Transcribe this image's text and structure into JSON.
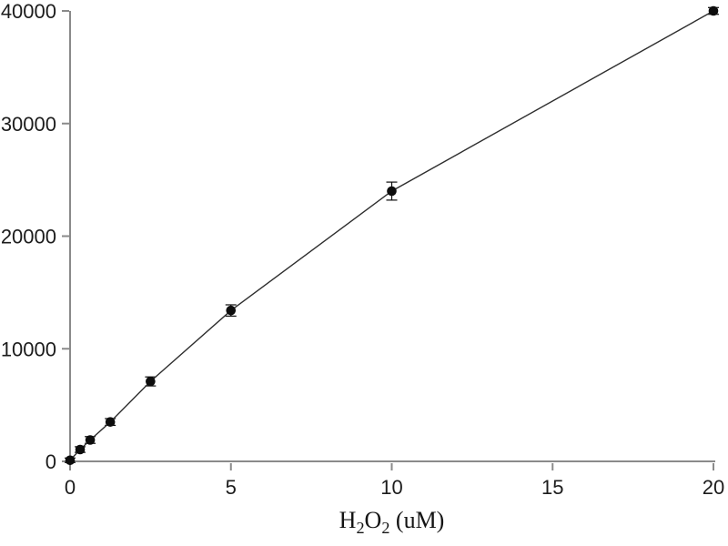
{
  "figure": {
    "background": "#ffffff",
    "axis_color": "#8a8a8a",
    "line_color": "#2e2e2e",
    "marker_color": "#0d0d0d",
    "text_color": "#1c1c1c",
    "tick_font_px": 22
  },
  "chart_data": {
    "type": "line",
    "title": "",
    "xlabel": "H2O2 (uM)",
    "xlabel_segments": [
      {
        "text": "H",
        "sub": false
      },
      {
        "text": "2",
        "sub": true
      },
      {
        "text": "O",
        "sub": false
      },
      {
        "text": "2",
        "sub": true
      },
      {
        "text": " (uM)",
        "sub": false
      }
    ],
    "ylabel": "",
    "x": [
      0,
      0.3125,
      0.625,
      1.25,
      2.5,
      5,
      10,
      20
    ],
    "y": [
      100,
      1050,
      1900,
      3500,
      7100,
      13400,
      24000,
      40000
    ],
    "y_err": [
      200,
      250,
      300,
      300,
      400,
      500,
      800,
      300
    ],
    "xlim": [
      0,
      20
    ],
    "ylim": [
      0,
      40000
    ],
    "x_ticks": [
      0,
      5,
      10,
      15,
      20
    ],
    "y_ticks": [
      0,
      10000,
      20000,
      30000,
      40000
    ],
    "grid": false,
    "legend": null,
    "marker": "circle",
    "error_bars": true
  }
}
